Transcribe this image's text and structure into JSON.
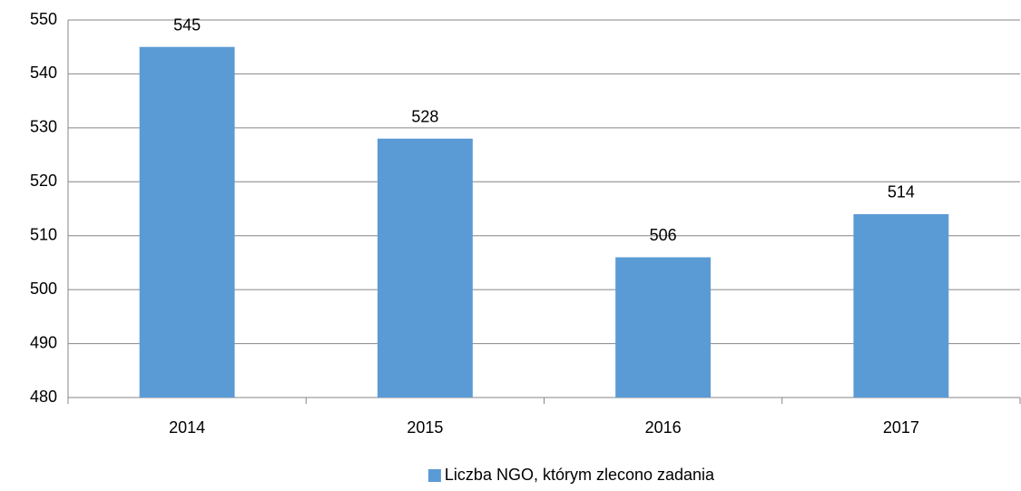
{
  "chart_data": {
    "type": "bar",
    "categories": [
      "2014",
      "2015",
      "2016",
      "2017"
    ],
    "series": [
      {
        "name": "Liczba NGO, którym zlecono zadania",
        "color": "#5b9bd5",
        "values": [
          545,
          528,
          506,
          514
        ]
      }
    ],
    "ylim": [
      480,
      550
    ],
    "yticks": [
      480,
      490,
      500,
      510,
      520,
      530,
      540,
      550
    ],
    "grid": true,
    "legend": "bottom"
  }
}
